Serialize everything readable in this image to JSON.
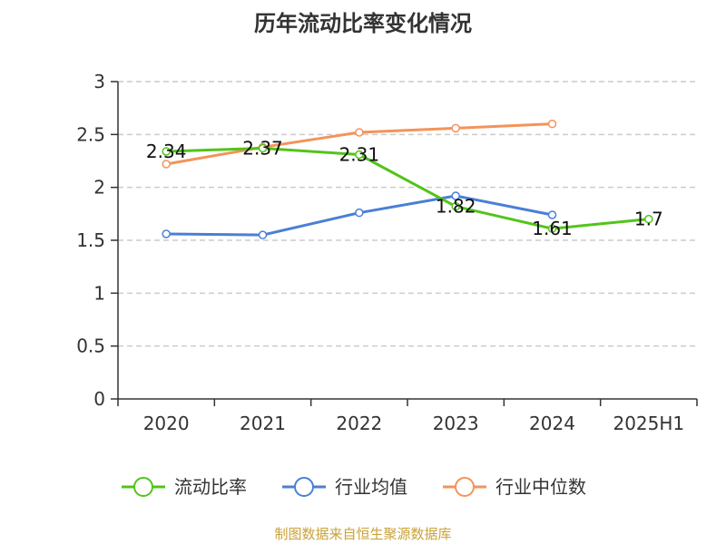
{
  "source_note": "制图数据来自恒生聚源数据库",
  "colors": {
    "source": "#c9a23a",
    "axis": "#333333",
    "grid": "#cccccc"
  },
  "chart_data": {
    "type": "line",
    "title": "历年流动比率变化情况",
    "categories": [
      "2020",
      "2021",
      "2022",
      "2023",
      "2024",
      "2025H1"
    ],
    "ylim": [
      0,
      3
    ],
    "yticks": [
      "0",
      "0.5",
      "1",
      "1.5",
      "2",
      "2.5",
      "3"
    ],
    "grid": true,
    "legend_position": "bottom",
    "series": [
      {
        "name": "流动比率",
        "color": "#52c41a",
        "values": [
          2.34,
          2.37,
          2.31,
          1.82,
          1.61,
          1.7
        ],
        "labels": [
          "2.34",
          "2.37",
          "2.31",
          "1.82",
          "1.61",
          "1.7"
        ]
      },
      {
        "name": "行业均值",
        "color": "#4a7fd6",
        "values": [
          1.56,
          1.55,
          1.76,
          1.92,
          1.74,
          null
        ]
      },
      {
        "name": "行业中位数",
        "color": "#f4935a",
        "values": [
          2.22,
          2.38,
          2.52,
          2.56,
          2.6,
          null
        ]
      }
    ]
  }
}
